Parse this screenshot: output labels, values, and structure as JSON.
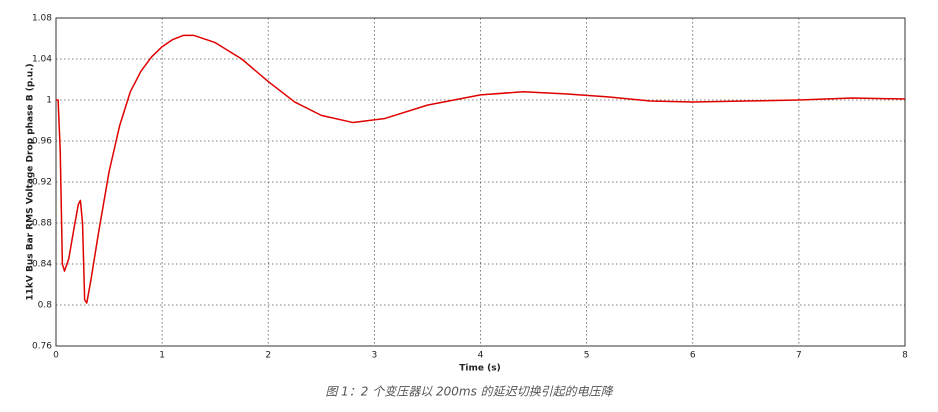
{
  "chart_data": {
    "type": "line",
    "y_label": "11kV Bus Bar RMS Voltage Drop phase B (p.u.)",
    "x_label": "Time (s)",
    "caption": "图 1：2 个变压器以 200ms 的延迟切换引起的电压降",
    "color": "#e00000",
    "grid": true,
    "xlim": [
      0,
      8
    ],
    "xticks": [
      0,
      1,
      2,
      3,
      4,
      5,
      6,
      7,
      8
    ],
    "ylim": [
      0.76,
      1.08
    ],
    "yticks": [
      0.76,
      0.8,
      0.84,
      0.88,
      0.92,
      0.96,
      1,
      1.04,
      1.08
    ],
    "x": [
      0,
      0.02,
      0.04,
      0.06,
      0.08,
      0.12,
      0.17,
      0.21,
      0.23,
      0.25,
      0.27,
      0.29,
      0.33,
      0.4,
      0.5,
      0.6,
      0.7,
      0.8,
      0.9,
      1.0,
      1.1,
      1.2,
      1.3,
      1.5,
      1.75,
      2.0,
      2.25,
      2.5,
      2.8,
      3.1,
      3.5,
      4.0,
      4.4,
      4.8,
      5.2,
      5.6,
      6.0,
      6.5,
      7.0,
      7.5,
      8.0
    ],
    "values": [
      1.0,
      1.0,
      0.95,
      0.84,
      0.833,
      0.845,
      0.875,
      0.898,
      0.902,
      0.88,
      0.805,
      0.802,
      0.825,
      0.87,
      0.93,
      0.975,
      1.008,
      1.028,
      1.042,
      1.052,
      1.059,
      1.063,
      1.063,
      1.056,
      1.04,
      1.018,
      0.998,
      0.985,
      0.978,
      0.982,
      0.995,
      1.005,
      1.008,
      1.006,
      1.003,
      0.999,
      0.998,
      0.999,
      1.0,
      1.002,
      1.001
    ]
  }
}
